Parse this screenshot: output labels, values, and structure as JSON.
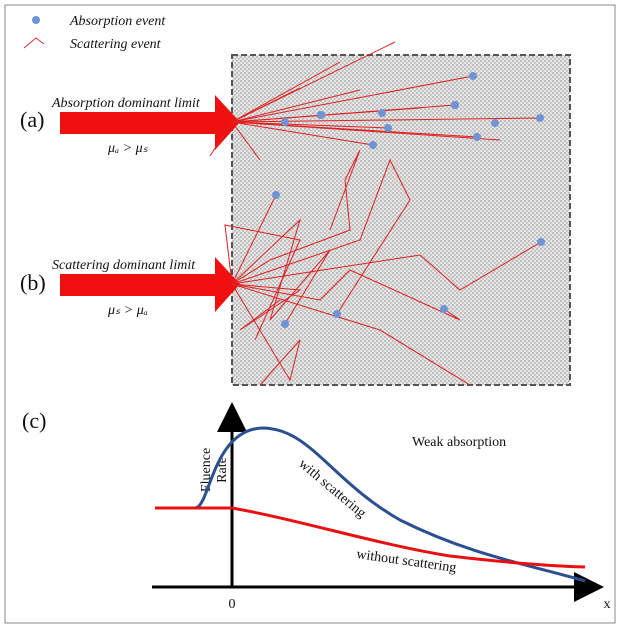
{
  "legend": {
    "items": [
      {
        "label": "Absorption event"
      },
      {
        "label": "Scattering event"
      }
    ]
  },
  "panels": [
    {
      "label": "(a)",
      "title": "Absorption dominant limit",
      "condition": "μₐ > μₛ"
    },
    {
      "label": "(b)",
      "title": "Scattering dominant limit",
      "condition": "μₛ > μₐ"
    }
  ],
  "plot": {
    "label": "(c)",
    "y_axis_label": [
      "Fluence",
      "Rate"
    ],
    "x_axis_label": "x",
    "origin_label": "0",
    "annotation": "Weak absorption",
    "curves": [
      {
        "label": "with scattering"
      },
      {
        "label": "without scattering"
      }
    ]
  }
}
